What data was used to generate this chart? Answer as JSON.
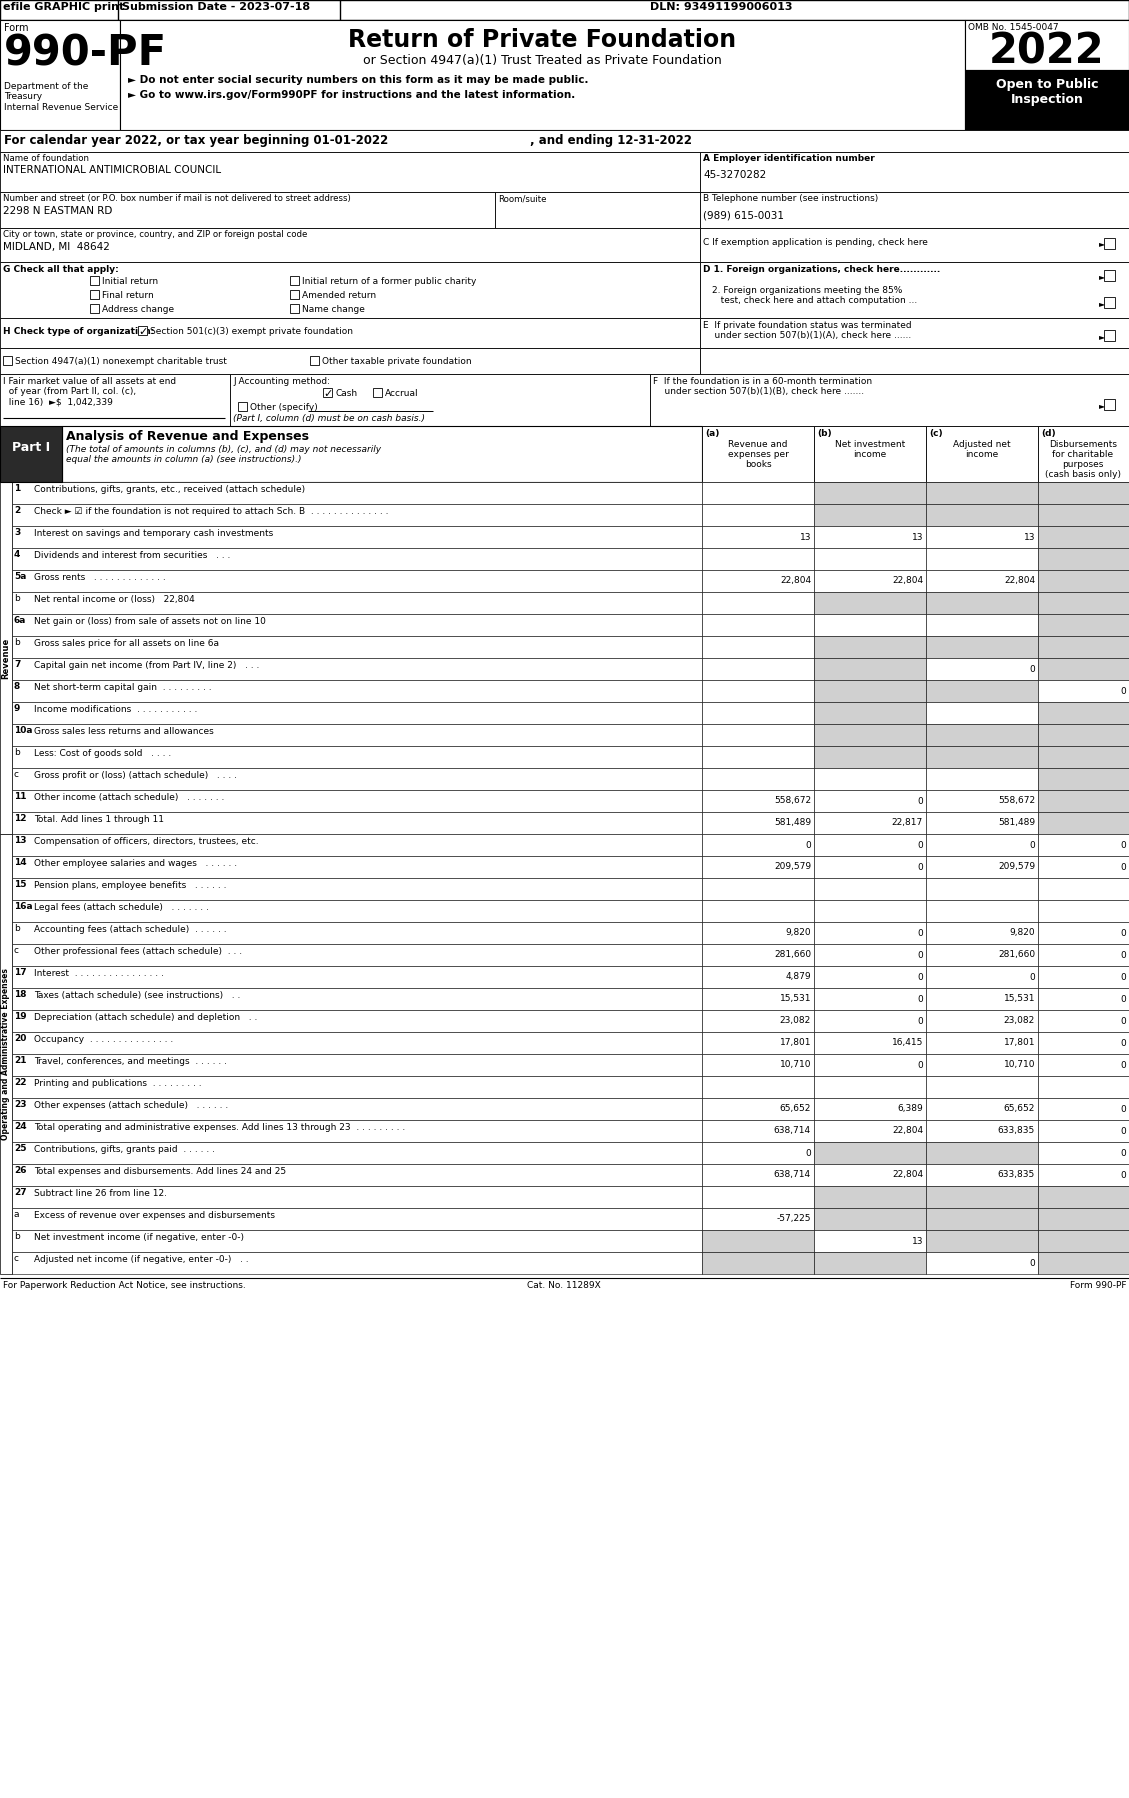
{
  "header_bar": {
    "efile": "efile GRAPHIC print",
    "submission": "Submission Date - 2023-07-18",
    "dln": "DLN: 93491199006013"
  },
  "form_title": "Return of Private Foundation",
  "form_subtitle": "or Section 4947(a)(1) Trust Treated as Private Foundation",
  "form_bullet1": "► Do not enter social security numbers on this form as it may be made public.",
  "form_bullet2": "► Go to www.irs.gov/Form990PF for instructions and the latest information.",
  "omb": "OMB No. 1545-0047",
  "year": "2022",
  "open_label": "Open to Public\nInspection",
  "calendar_line1": "For calendar year 2022, or tax year beginning 01-01-2022",
  "calendar_line2": ", and ending 12-31-2022",
  "name_label": "Name of foundation",
  "name_value": "INTERNATIONAL ANTIMICROBIAL COUNCIL",
  "ein_label": "A Employer identification number",
  "ein_value": "45-3270282",
  "address_label": "Number and street (or P.O. box number if mail is not delivered to street address)",
  "address_value": "2298 N EASTMAN RD",
  "room_label": "Room/suite",
  "phone_label": "B Telephone number (see instructions)",
  "phone_value": "(989) 615-0031",
  "city_label": "City or town, state or province, country, and ZIP or foreign postal code",
  "city_value": "MIDLAND, MI  48642",
  "exemption_label": "C If exemption application is pending, check here",
  "g_label": "G Check all that apply:",
  "g_options_left": [
    "Initial return",
    "Final return",
    "Address change"
  ],
  "g_options_right": [
    "Initial return of a former public charity",
    "Amended return",
    "Name change"
  ],
  "d1_label": "D 1. Foreign organizations, check here............",
  "d2_label": "2. Foreign organizations meeting the 85%\n   test, check here and attach computation ...",
  "e_label": "E  If private foundation status was terminated\n    under section 507(b)(1)(A), check here ......",
  "h_label": "H Check type of organization:",
  "h_option1": "Section 501(c)(3) exempt private foundation",
  "h_option2_left": "Section 4947(a)(1) nonexempt charitable trust",
  "h_option2_right": "Other taxable private foundation",
  "i_line1": "I Fair market value of all assets at end",
  "i_line2": "  of year (from Part II, col. (c),",
  "i_line3": "  line 16)  ►$  1,042,339",
  "j_label": "J Accounting method:",
  "j_cash": "Cash",
  "j_accrual": "Accrual",
  "j_other": "Other (specify)",
  "j_note": "(Part I, column (d) must be on cash basis.)",
  "f_label": "F  If the foundation is in a 60-month termination\n    under section 507(b)(1)(B), check here .......",
  "part1_label": "Part I",
  "part1_title": "Analysis of Revenue and Expenses",
  "part1_italic": "(The total of amounts in columns (b), (c), and (d) may not necessarily",
  "part1_italic2": "equal the amounts in column (a) (see instructions).)",
  "col_a_label": "(a)",
  "col_a": "Revenue and\nexpenses per\nbooks",
  "col_b_label": "(b)",
  "col_b": "Net investment\nincome",
  "col_c_label": "(c)",
  "col_c": "Adjusted net\nincome",
  "col_d_label": "(d)",
  "col_d": "Disbursements\nfor charitable\npurposes\n(cash basis only)",
  "rows": [
    {
      "num": "1",
      "label": "Contributions, gifts, grants, etc., received (attach schedule)",
      "a": "",
      "b": "",
      "c": "",
      "d": "",
      "shaded_b": true,
      "shaded_c": true,
      "shaded_d": true
    },
    {
      "num": "2",
      "label": "Check ► ☑ if the foundation is not required to attach Sch. B  . . . . . . . . . . . . . .",
      "a": "",
      "b": "",
      "c": "",
      "d": "",
      "shaded_b": true,
      "shaded_c": true,
      "shaded_d": true
    },
    {
      "num": "3",
      "label": "Interest on savings and temporary cash investments",
      "a": "13",
      "b": "13",
      "c": "13",
      "d": "",
      "shaded_d": true
    },
    {
      "num": "4",
      "label": "Dividends and interest from securities   . . .",
      "a": "",
      "b": "",
      "c": "",
      "d": "",
      "shaded_d": true
    },
    {
      "num": "5a",
      "label": "Gross rents   . . . . . . . . . . . . .",
      "a": "22,804",
      "b": "22,804",
      "c": "22,804",
      "d": "",
      "shaded_d": true
    },
    {
      "num": "b",
      "label": "Net rental income or (loss)   22,804",
      "a": "",
      "b": "",
      "c": "",
      "d": "",
      "shaded_b": true,
      "shaded_c": true,
      "shaded_d": true
    },
    {
      "num": "6a",
      "label": "Net gain or (loss) from sale of assets not on line 10",
      "a": "",
      "b": "",
      "c": "",
      "d": "",
      "shaded_d": true
    },
    {
      "num": "b",
      "label": "Gross sales price for all assets on line 6a",
      "a": "",
      "b": "",
      "c": "",
      "d": "",
      "shaded_b": true,
      "shaded_c": true,
      "shaded_d": true
    },
    {
      "num": "7",
      "label": "Capital gain net income (from Part IV, line 2)   . . .",
      "a": "",
      "b": "",
      "c": "0",
      "d": "",
      "shaded_b": true,
      "shaded_d": true
    },
    {
      "num": "8",
      "label": "Net short-term capital gain  . . . . . . . . .",
      "a": "",
      "b": "",
      "c": "",
      "d": "0",
      "shaded_b": true,
      "shaded_c": true
    },
    {
      "num": "9",
      "label": "Income modifications  . . . . . . . . . . .",
      "a": "",
      "b": "",
      "c": "",
      "d": "",
      "shaded_b": true,
      "shaded_d": true
    },
    {
      "num": "10a",
      "label": "Gross sales less returns and allowances",
      "a": "",
      "b": "",
      "c": "",
      "d": "",
      "shaded_b": true,
      "shaded_c": true,
      "shaded_d": true
    },
    {
      "num": "b",
      "label": "Less: Cost of goods sold   . . . .",
      "a": "",
      "b": "",
      "c": "",
      "d": "",
      "shaded_b": true,
      "shaded_c": true,
      "shaded_d": true
    },
    {
      "num": "c",
      "label": "Gross profit or (loss) (attach schedule)   . . . .",
      "a": "",
      "b": "",
      "c": "",
      "d": "",
      "shaded_d": true
    },
    {
      "num": "11",
      "label": "Other income (attach schedule)   . . . . . . .",
      "a": "558,672",
      "b": "0",
      "c": "558,672",
      "d": "",
      "shaded_d": true
    },
    {
      "num": "12",
      "label": "Total. Add lines 1 through 11",
      "a": "581,489",
      "b": "22,817",
      "c": "581,489",
      "d": "",
      "shaded_d": true
    },
    {
      "num": "13",
      "label": "Compensation of officers, directors, trustees, etc.",
      "a": "0",
      "b": "0",
      "c": "0",
      "d": "0"
    },
    {
      "num": "14",
      "label": "Other employee salaries and wages   . . . . . .",
      "a": "209,579",
      "b": "0",
      "c": "209,579",
      "d": "0"
    },
    {
      "num": "15",
      "label": "Pension plans, employee benefits   . . . . . .",
      "a": "",
      "b": "",
      "c": "",
      "d": ""
    },
    {
      "num": "16a",
      "label": "Legal fees (attach schedule)   . . . . . . .",
      "a": "",
      "b": "",
      "c": "",
      "d": ""
    },
    {
      "num": "b",
      "label": "Accounting fees (attach schedule)  . . . . . .",
      "a": "9,820",
      "b": "0",
      "c": "9,820",
      "d": "0"
    },
    {
      "num": "c",
      "label": "Other professional fees (attach schedule)  . . .",
      "a": "281,660",
      "b": "0",
      "c": "281,660",
      "d": "0"
    },
    {
      "num": "17",
      "label": "Interest  . . . . . . . . . . . . . . . .",
      "a": "4,879",
      "b": "0",
      "c": "0",
      "d": "0"
    },
    {
      "num": "18",
      "label": "Taxes (attach schedule) (see instructions)   . .",
      "a": "15,531",
      "b": "0",
      "c": "15,531",
      "d": "0"
    },
    {
      "num": "19",
      "label": "Depreciation (attach schedule) and depletion   . .",
      "a": "23,082",
      "b": "0",
      "c": "23,082",
      "d": "0"
    },
    {
      "num": "20",
      "label": "Occupancy  . . . . . . . . . . . . . . .",
      "a": "17,801",
      "b": "16,415",
      "c": "17,801",
      "d": "0"
    },
    {
      "num": "21",
      "label": "Travel, conferences, and meetings  . . . . . .",
      "a": "10,710",
      "b": "0",
      "c": "10,710",
      "d": "0"
    },
    {
      "num": "22",
      "label": "Printing and publications  . . . . . . . . .",
      "a": "",
      "b": "",
      "c": "",
      "d": ""
    },
    {
      "num": "23",
      "label": "Other expenses (attach schedule)   . . . . . .",
      "a": "65,652",
      "b": "6,389",
      "c": "65,652",
      "d": "0"
    },
    {
      "num": "24",
      "label": "Total operating and administrative expenses. Add lines 13 through 23  . . . . . . . . .",
      "a": "638,714",
      "b": "22,804",
      "c": "633,835",
      "d": "0"
    },
    {
      "num": "25",
      "label": "Contributions, gifts, grants paid  . . . . . .",
      "a": "0",
      "b": "",
      "c": "",
      "d": "0",
      "shaded_b": true,
      "shaded_c": true
    },
    {
      "num": "26",
      "label": "Total expenses and disbursements. Add lines 24 and 25",
      "a": "638,714",
      "b": "22,804",
      "c": "633,835",
      "d": "0"
    },
    {
      "num": "27",
      "label": "Subtract line 26 from line 12.",
      "a": "",
      "b": "",
      "c": "",
      "d": "",
      "shaded_b": true,
      "shaded_c": true,
      "shaded_d": true
    },
    {
      "num": "a",
      "label": "Excess of revenue over expenses and disbursements",
      "a": "-57,225",
      "b": "",
      "c": "",
      "d": "",
      "shaded_b": true,
      "shaded_c": true,
      "shaded_d": true
    },
    {
      "num": "b",
      "label": "Net investment income (if negative, enter -0-)",
      "a": "",
      "b": "13",
      "c": "",
      "d": "",
      "shaded_a": true,
      "shaded_c": true,
      "shaded_d": true
    },
    {
      "num": "c",
      "label": "Adjusted net income (if negative, enter -0-)   . .",
      "a": "",
      "b": "",
      "c": "0",
      "d": "",
      "shaded_a": true,
      "shaded_b": true,
      "shaded_d": true
    }
  ],
  "footer_left": "For Paperwork Reduction Act Notice, see instructions.",
  "footer_cat": "Cat. No. 11289X",
  "footer_right": "Form 990-PF",
  "shade_color": "#d0d0d0",
  "dark_header": "#2a2a2a"
}
